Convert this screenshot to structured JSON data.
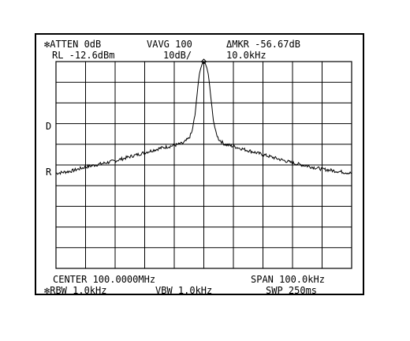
{
  "header": {
    "atten": "✻ATTEN 0dB",
    "vavg": "VAVG 100",
    "marker": "ΔMKR -56.67dB",
    "ref_level": "RL -12.6dBm",
    "scale": "10dB/",
    "marker_freq": "10.0kHz"
  },
  "side_markers": {
    "d": "D",
    "r": "R"
  },
  "footer": {
    "center": "CENTER 100.0000MHz",
    "span": "SPAN 100.0kHz",
    "rbw": "✻RBW 1.0kHz",
    "vbw": "VBW 1.0kHz",
    "sweep": "SWP 250ms"
  },
  "colors": {
    "trace": "#000000",
    "grid": "#000000",
    "background": "#ffffff"
  },
  "chart_data": {
    "type": "line",
    "title": "",
    "xlabel": "",
    "ylabel": "",
    "x_unit": "kHz offset from center",
    "y_unit": "dB relative to reference level",
    "xlim": [
      -50,
      50
    ],
    "ylim": [
      -100,
      0
    ],
    "grid": true,
    "x_divisions": 10,
    "y_divisions": 10,
    "peak_marker": {
      "x": 0,
      "y": 0
    },
    "series": [
      {
        "x": [
          -50,
          -45,
          -40,
          -35,
          -30,
          -25,
          -20,
          -15,
          -10,
          -7,
          -5,
          -4,
          -3,
          -2,
          -1.5,
          -1,
          -0.5,
          0,
          0.5,
          1,
          1.5,
          2,
          3,
          4,
          5,
          7,
          10,
          15,
          20,
          25,
          30,
          35,
          40,
          45,
          50
        ],
        "y": [
          -54,
          -53,
          -51,
          -49.5,
          -48,
          -46,
          -44,
          -42,
          -40.5,
          -39.5,
          -37,
          -34,
          -26,
          -12,
          -6,
          -3,
          -1,
          0,
          -1,
          -3,
          -6,
          -12,
          -26,
          -34,
          -37.5,
          -40,
          -41,
          -43,
          -45,
          -47,
          -49,
          -50.5,
          -52,
          -53,
          -54
        ]
      }
    ]
  }
}
